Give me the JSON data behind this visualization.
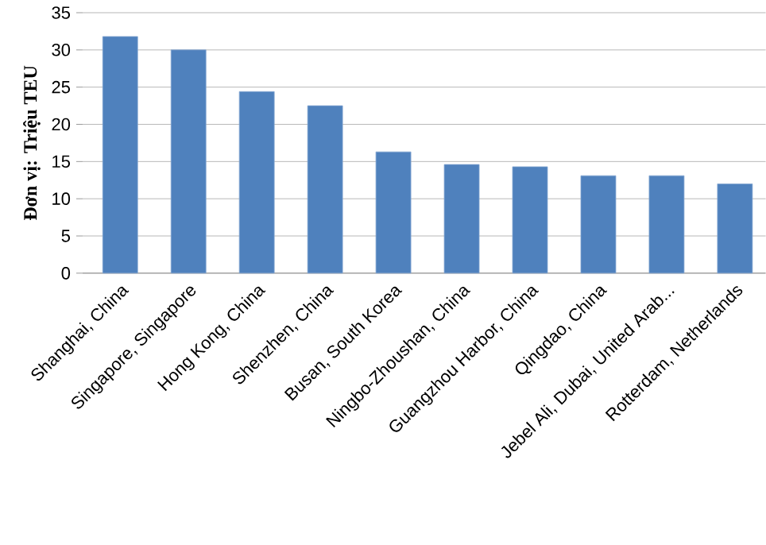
{
  "chart_data": {
    "type": "bar",
    "ylabel": "Đơn vị: Triệu TEU",
    "categories": [
      "Shanghai, China",
      "Singapore, Singapore",
      "Hong Kong, China",
      "Shenzhen, China",
      "Busan, South Korea",
      "Ningbo-Zhoushan, China",
      "Guangzhou Harbor, China",
      "Qingdao, China",
      "Jebel Ali, Dubai, United Arab...",
      "Rotterdam, Netherlands"
    ],
    "values": [
      31.8,
      30.0,
      24.4,
      22.5,
      16.3,
      14.6,
      14.3,
      13.1,
      13.1,
      12.0
    ],
    "color": "#4f81bd",
    "ylim": [
      0,
      35
    ],
    "yticks": [
      0,
      5,
      10,
      15,
      20,
      25,
      30,
      35
    ],
    "grid": "y"
  }
}
